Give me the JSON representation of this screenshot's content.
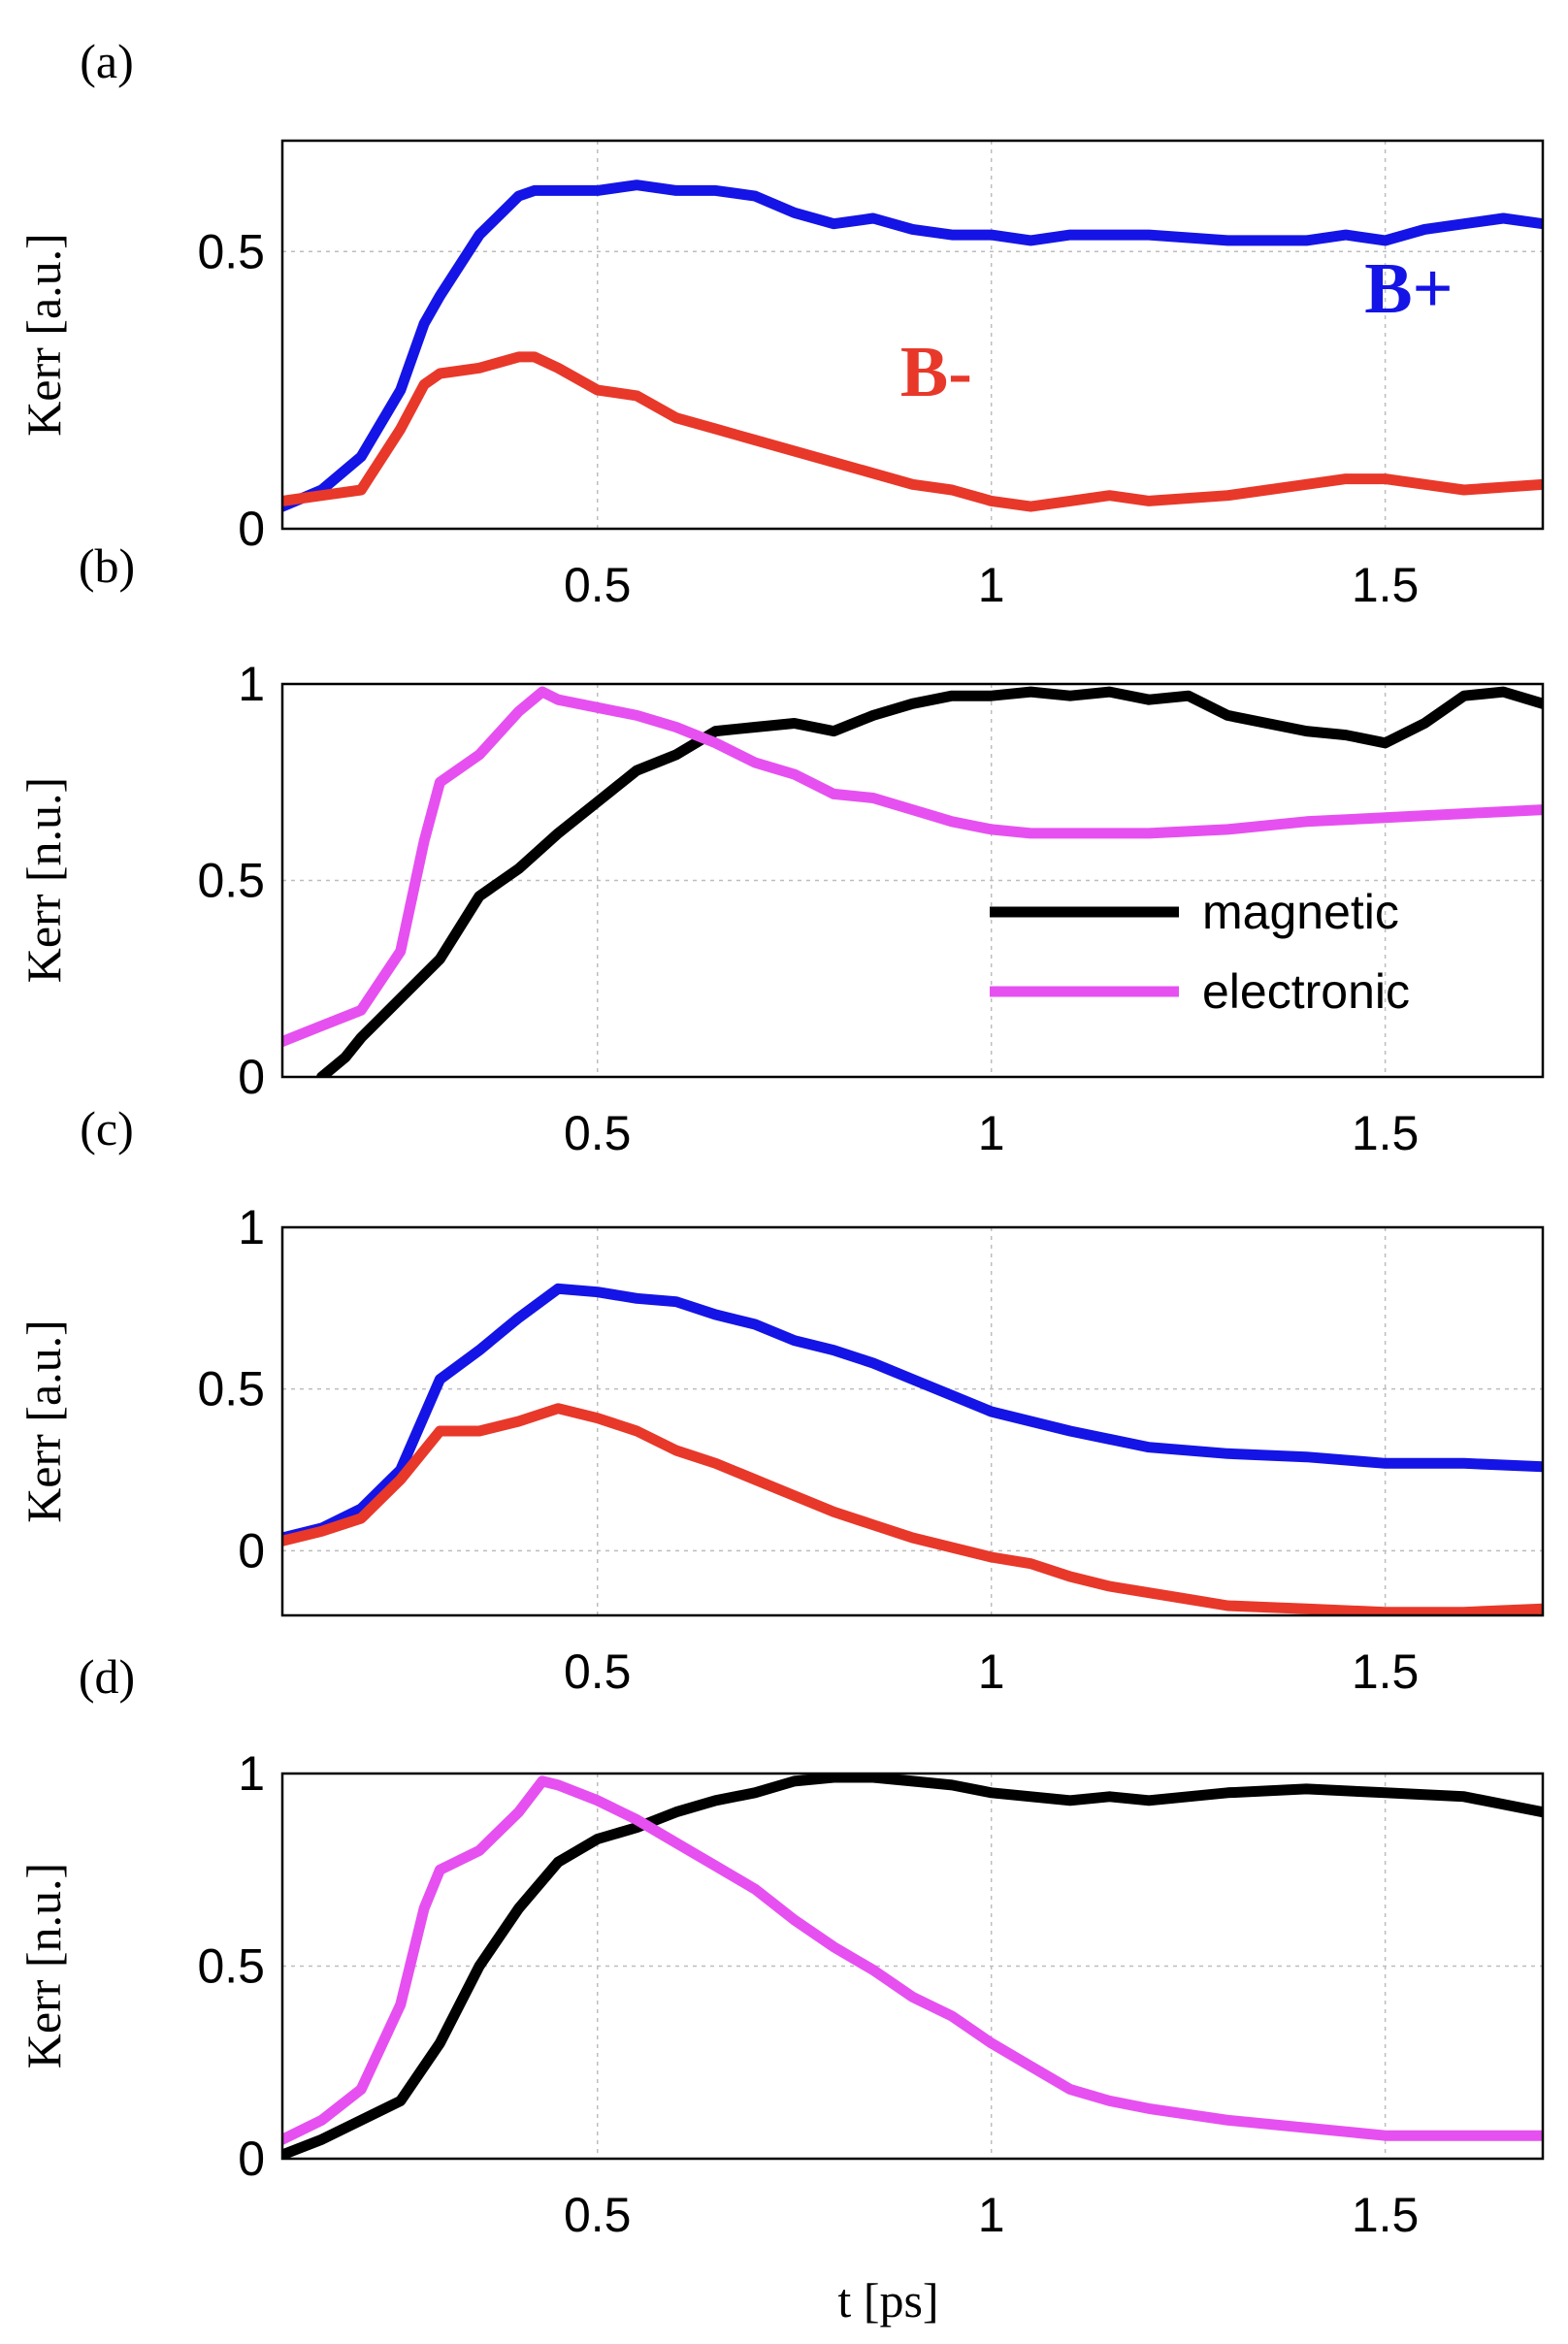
{
  "chart_data": [
    {
      "panel": "(a)",
      "type": "line",
      "ylabel": "Kerr [a.u.]",
      "xlabel": "",
      "xlim": [
        0.1,
        1.7
      ],
      "ylim": [
        0,
        0.7
      ],
      "xticks": [
        0.5,
        1,
        1.5
      ],
      "xtick_labels": [
        "0.5",
        "1",
        "1.5"
      ],
      "yticks": [
        0,
        0.5
      ],
      "ytick_labels": [
        "0",
        "0.5"
      ],
      "grid": true,
      "series": [
        {
          "name": "B+",
          "color": "#1414e6",
          "x": [
            0.1,
            0.15,
            0.2,
            0.25,
            0.28,
            0.3,
            0.35,
            0.4,
            0.42,
            0.45,
            0.5,
            0.55,
            0.6,
            0.65,
            0.7,
            0.75,
            0.8,
            0.85,
            0.9,
            0.95,
            1.0,
            1.05,
            1.1,
            1.2,
            1.3,
            1.4,
            1.45,
            1.5,
            1.55,
            1.6,
            1.65,
            1.7
          ],
          "y": [
            0.04,
            0.07,
            0.13,
            0.25,
            0.37,
            0.42,
            0.53,
            0.6,
            0.61,
            0.61,
            0.61,
            0.62,
            0.61,
            0.61,
            0.6,
            0.57,
            0.55,
            0.56,
            0.54,
            0.53,
            0.53,
            0.52,
            0.53,
            0.53,
            0.52,
            0.52,
            0.53,
            0.52,
            0.54,
            0.55,
            0.56,
            0.55
          ]
        },
        {
          "name": "B-",
          "color": "#e8382a",
          "x": [
            0.1,
            0.15,
            0.2,
            0.25,
            0.28,
            0.3,
            0.35,
            0.4,
            0.42,
            0.45,
            0.5,
            0.55,
            0.6,
            0.65,
            0.7,
            0.8,
            0.9,
            0.95,
            1.0,
            1.05,
            1.1,
            1.15,
            1.2,
            1.3,
            1.4,
            1.45,
            1.5,
            1.55,
            1.6,
            1.7
          ],
          "y": [
            0.05,
            0.06,
            0.07,
            0.18,
            0.26,
            0.28,
            0.29,
            0.31,
            0.31,
            0.29,
            0.25,
            0.24,
            0.2,
            0.18,
            0.16,
            0.12,
            0.08,
            0.07,
            0.05,
            0.04,
            0.05,
            0.06,
            0.05,
            0.06,
            0.08,
            0.09,
            0.09,
            0.08,
            0.07,
            0.08
          ]
        }
      ],
      "annotations": [
        {
          "text": "B+",
          "color": "#1414e6",
          "x": 1.53,
          "y": 0.39
        },
        {
          "text": "B-",
          "color": "#e8382a",
          "x": 0.93,
          "y": 0.24
        }
      ]
    },
    {
      "panel": "(b)",
      "type": "line",
      "ylabel": "Kerr [n.u.]",
      "xlabel": "",
      "xlim": [
        0.1,
        1.7
      ],
      "ylim": [
        0,
        1
      ],
      "xticks": [
        0.5,
        1,
        1.5
      ],
      "xtick_labels": [
        "0.5",
        "1",
        "1.5"
      ],
      "yticks": [
        0,
        0.5,
        1
      ],
      "ytick_labels": [
        "0",
        "0.5",
        "1"
      ],
      "grid": true,
      "legend": {
        "placement": "right",
        "entries": [
          "magnetic",
          "electronic"
        ]
      },
      "series": [
        {
          "name": "magnetic",
          "color": "#000000",
          "x": [
            0.15,
            0.18,
            0.2,
            0.25,
            0.3,
            0.35,
            0.4,
            0.45,
            0.5,
            0.55,
            0.6,
            0.65,
            0.7,
            0.75,
            0.8,
            0.85,
            0.9,
            0.95,
            1.0,
            1.05,
            1.1,
            1.15,
            1.2,
            1.25,
            1.3,
            1.35,
            1.4,
            1.45,
            1.5,
            1.55,
            1.6,
            1.65,
            1.7
          ],
          "y": [
            0.0,
            0.05,
            0.1,
            0.2,
            0.3,
            0.46,
            0.53,
            0.62,
            0.7,
            0.78,
            0.82,
            0.88,
            0.89,
            0.9,
            0.88,
            0.92,
            0.95,
            0.97,
            0.97,
            0.98,
            0.97,
            0.98,
            0.96,
            0.97,
            0.92,
            0.9,
            0.88,
            0.87,
            0.85,
            0.9,
            0.97,
            0.98,
            0.95
          ]
        },
        {
          "name": "electronic",
          "color": "#e650f0",
          "x": [
            0.1,
            0.15,
            0.2,
            0.25,
            0.28,
            0.3,
            0.35,
            0.4,
            0.43,
            0.45,
            0.5,
            0.55,
            0.6,
            0.65,
            0.7,
            0.75,
            0.8,
            0.85,
            0.9,
            0.95,
            1.0,
            1.05,
            1.1,
            1.2,
            1.3,
            1.4,
            1.5,
            1.6,
            1.7
          ],
          "y": [
            0.09,
            0.13,
            0.17,
            0.32,
            0.6,
            0.75,
            0.82,
            0.93,
            0.98,
            0.96,
            0.94,
            0.92,
            0.89,
            0.85,
            0.8,
            0.77,
            0.72,
            0.71,
            0.68,
            0.65,
            0.63,
            0.62,
            0.62,
            0.62,
            0.63,
            0.65,
            0.66,
            0.67,
            0.68
          ]
        }
      ]
    },
    {
      "panel": "(c)",
      "type": "line",
      "ylabel": "Kerr [a.u.]",
      "xlabel": "",
      "xlim": [
        0.1,
        1.7
      ],
      "ylim": [
        -0.2,
        1
      ],
      "xticks": [
        0.5,
        1,
        1.5
      ],
      "xtick_labels": [
        "0.5",
        "1",
        "1.5"
      ],
      "yticks": [
        0,
        0.5,
        1
      ],
      "ytick_labels": [
        "0",
        "0.5",
        "1"
      ],
      "grid": true,
      "series": [
        {
          "name": "B+",
          "color": "#1414e6",
          "x": [
            0.1,
            0.15,
            0.2,
            0.25,
            0.3,
            0.35,
            0.4,
            0.45,
            0.5,
            0.55,
            0.6,
            0.65,
            0.7,
            0.75,
            0.8,
            0.85,
            0.9,
            0.95,
            1.0,
            1.05,
            1.1,
            1.2,
            1.3,
            1.4,
            1.5,
            1.6,
            1.7
          ],
          "y": [
            0.04,
            0.07,
            0.13,
            0.25,
            0.53,
            0.62,
            0.72,
            0.81,
            0.8,
            0.78,
            0.77,
            0.73,
            0.7,
            0.65,
            0.62,
            0.58,
            0.53,
            0.48,
            0.43,
            0.4,
            0.37,
            0.32,
            0.3,
            0.29,
            0.27,
            0.27,
            0.26
          ]
        },
        {
          "name": "B-",
          "color": "#e8382a",
          "x": [
            0.1,
            0.15,
            0.2,
            0.25,
            0.3,
            0.35,
            0.4,
            0.45,
            0.5,
            0.55,
            0.6,
            0.65,
            0.7,
            0.75,
            0.8,
            0.85,
            0.9,
            0.95,
            1.0,
            1.05,
            1.1,
            1.15,
            1.2,
            1.25,
            1.3,
            1.4,
            1.5,
            1.6,
            1.7
          ],
          "y": [
            0.03,
            0.06,
            0.1,
            0.22,
            0.37,
            0.37,
            0.4,
            0.44,
            0.41,
            0.37,
            0.31,
            0.27,
            0.22,
            0.17,
            0.12,
            0.08,
            0.04,
            0.01,
            -0.02,
            -0.04,
            -0.08,
            -0.11,
            -0.13,
            -0.15,
            -0.17,
            -0.18,
            -0.19,
            -0.19,
            -0.18
          ]
        }
      ]
    },
    {
      "panel": "(d)",
      "type": "line",
      "ylabel": "Kerr [n.u.]",
      "xlabel": "t [ps]",
      "xlim": [
        0.1,
        1.7
      ],
      "ylim": [
        0,
        1
      ],
      "xticks": [
        0.5,
        1,
        1.5
      ],
      "xtick_labels": [
        "0.5",
        "1",
        "1.5"
      ],
      "yticks": [
        0,
        0.5,
        1
      ],
      "ytick_labels": [
        "0",
        "0.5",
        "1"
      ],
      "grid": true,
      "series": [
        {
          "name": "magnetic",
          "color": "#000000",
          "x": [
            0.1,
            0.15,
            0.2,
            0.25,
            0.3,
            0.35,
            0.4,
            0.45,
            0.5,
            0.55,
            0.6,
            0.65,
            0.7,
            0.75,
            0.8,
            0.85,
            0.9,
            0.95,
            1.0,
            1.05,
            1.1,
            1.15,
            1.2,
            1.3,
            1.4,
            1.5,
            1.6,
            1.7
          ],
          "y": [
            0.01,
            0.05,
            0.1,
            0.15,
            0.3,
            0.5,
            0.65,
            0.77,
            0.83,
            0.86,
            0.9,
            0.93,
            0.95,
            0.98,
            0.99,
            0.99,
            0.98,
            0.97,
            0.95,
            0.94,
            0.93,
            0.94,
            0.93,
            0.95,
            0.96,
            0.95,
            0.94,
            0.9
          ]
        },
        {
          "name": "electronic",
          "color": "#e650f0",
          "x": [
            0.1,
            0.15,
            0.2,
            0.25,
            0.28,
            0.3,
            0.35,
            0.4,
            0.43,
            0.45,
            0.5,
            0.55,
            0.6,
            0.65,
            0.7,
            0.75,
            0.8,
            0.85,
            0.9,
            0.95,
            1.0,
            1.05,
            1.1,
            1.15,
            1.2,
            1.3,
            1.4,
            1.5,
            1.6,
            1.7
          ],
          "y": [
            0.05,
            0.1,
            0.18,
            0.4,
            0.65,
            0.75,
            0.8,
            0.9,
            0.98,
            0.97,
            0.93,
            0.88,
            0.82,
            0.76,
            0.7,
            0.62,
            0.55,
            0.49,
            0.42,
            0.37,
            0.3,
            0.24,
            0.18,
            0.15,
            0.13,
            0.1,
            0.08,
            0.06,
            0.06,
            0.06
          ]
        }
      ]
    }
  ]
}
